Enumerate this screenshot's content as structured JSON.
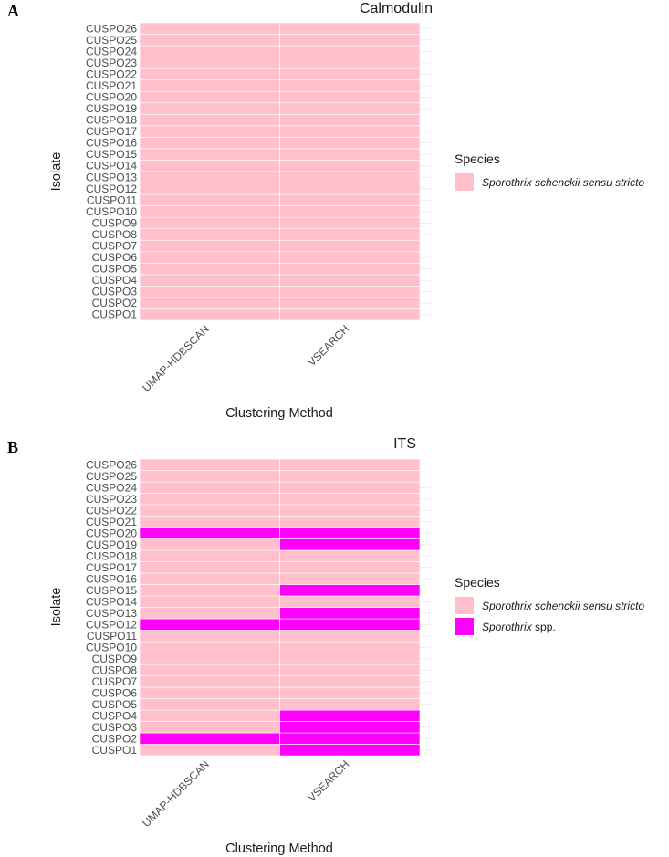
{
  "colors": {
    "sensu_stricto": "#ffc0cb",
    "spp": "#ff00ff",
    "grid": "#ebebeb",
    "tile_border": "#ffffff"
  },
  "chart_data": [
    {
      "type": "heatmap",
      "panel_label": "A",
      "title": "Calmodulin",
      "xlabel": "Clustering Method",
      "ylabel": "Isolate",
      "categories": [
        "UMAP-HDBSCAN",
        "VSEARCH"
      ],
      "isolates": [
        "CUSPO1",
        "CUSPO2",
        "CUSPO3",
        "CUSPO4",
        "CUSPO5",
        "CUSPO6",
        "CUSPO7",
        "CUSPO8",
        "CUSPO9",
        "CUSPO10",
        "CUSPO11",
        "CUSPO12",
        "CUSPO13",
        "CUSPO14",
        "CUSPO15",
        "CUSPO16",
        "CUSPO17",
        "CUSPO18",
        "CUSPO19",
        "CUSPO20",
        "CUSPO21",
        "CUSPO22",
        "CUSPO23",
        "CUSPO24",
        "CUSPO25",
        "CUSPO26"
      ],
      "legend_title": "Species",
      "legend": [
        {
          "key": "sensu_stricto",
          "genus": "Sporothrix",
          "rest": " schenckii sensu stricto"
        }
      ],
      "assignments": {
        "UMAP-HDBSCAN": [
          "sensu_stricto",
          "sensu_stricto",
          "sensu_stricto",
          "sensu_stricto",
          "sensu_stricto",
          "sensu_stricto",
          "sensu_stricto",
          "sensu_stricto",
          "sensu_stricto",
          "sensu_stricto",
          "sensu_stricto",
          "sensu_stricto",
          "sensu_stricto",
          "sensu_stricto",
          "sensu_stricto",
          "sensu_stricto",
          "sensu_stricto",
          "sensu_stricto",
          "sensu_stricto",
          "sensu_stricto",
          "sensu_stricto",
          "sensu_stricto",
          "sensu_stricto",
          "sensu_stricto",
          "sensu_stricto",
          "sensu_stricto"
        ],
        "VSEARCH": [
          "sensu_stricto",
          "sensu_stricto",
          "sensu_stricto",
          "sensu_stricto",
          "sensu_stricto",
          "sensu_stricto",
          "sensu_stricto",
          "sensu_stricto",
          "sensu_stricto",
          "sensu_stricto",
          "sensu_stricto",
          "sensu_stricto",
          "sensu_stricto",
          "sensu_stricto",
          "sensu_stricto",
          "sensu_stricto",
          "sensu_stricto",
          "sensu_stricto",
          "sensu_stricto",
          "sensu_stricto",
          "sensu_stricto",
          "sensu_stricto",
          "sensu_stricto",
          "sensu_stricto",
          "sensu_stricto",
          "sensu_stricto"
        ]
      }
    },
    {
      "type": "heatmap",
      "panel_label": "B",
      "title": "ITS",
      "xlabel": "Clustering Method",
      "ylabel": "Isolate",
      "categories": [
        "UMAP-HDBSCAN",
        "VSEARCH"
      ],
      "isolates": [
        "CUSPO1",
        "CUSPO2",
        "CUSPO3",
        "CUSPO4",
        "CUSPO5",
        "CUSPO6",
        "CUSPO7",
        "CUSPO8",
        "CUSPO9",
        "CUSPO10",
        "CUSPO11",
        "CUSPO12",
        "CUSPO13",
        "CUSPO14",
        "CUSPO15",
        "CUSPO16",
        "CUSPO17",
        "CUSPO18",
        "CUSPO19",
        "CUSPO20",
        "CUSPO21",
        "CUSPO22",
        "CUSPO23",
        "CUSPO24",
        "CUSPO25",
        "CUSPO26"
      ],
      "legend_title": "Species",
      "legend": [
        {
          "key": "sensu_stricto",
          "genus": "Sporothrix",
          "rest": " schenckii sensu stricto"
        },
        {
          "key": "spp",
          "genus": "Sporothrix",
          "rest": " spp."
        }
      ],
      "assignments": {
        "UMAP-HDBSCAN": [
          "sensu_stricto",
          "spp",
          "sensu_stricto",
          "sensu_stricto",
          "sensu_stricto",
          "sensu_stricto",
          "sensu_stricto",
          "sensu_stricto",
          "sensu_stricto",
          "sensu_stricto",
          "sensu_stricto",
          "spp",
          "sensu_stricto",
          "sensu_stricto",
          "sensu_stricto",
          "sensu_stricto",
          "sensu_stricto",
          "sensu_stricto",
          "sensu_stricto",
          "spp",
          "sensu_stricto",
          "sensu_stricto",
          "sensu_stricto",
          "sensu_stricto",
          "sensu_stricto",
          "sensu_stricto"
        ],
        "VSEARCH": [
          "spp",
          "spp",
          "spp",
          "spp",
          "sensu_stricto",
          "sensu_stricto",
          "sensu_stricto",
          "sensu_stricto",
          "sensu_stricto",
          "sensu_stricto",
          "sensu_stricto",
          "spp",
          "spp",
          "sensu_stricto",
          "spp",
          "sensu_stricto",
          "sensu_stricto",
          "sensu_stricto",
          "spp",
          "spp",
          "sensu_stricto",
          "sensu_stricto",
          "sensu_stricto",
          "sensu_stricto",
          "sensu_stricto",
          "sensu_stricto"
        ]
      }
    }
  ]
}
